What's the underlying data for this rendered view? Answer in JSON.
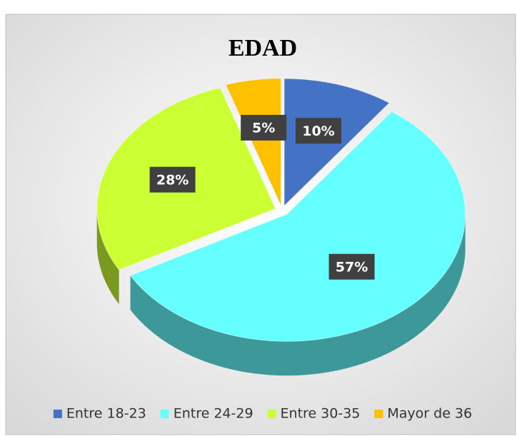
{
  "chart_data": {
    "type": "pie",
    "title": "EDAD",
    "categories": [
      "Entre 18-23",
      "Entre 24-29",
      "Entre 30-35",
      "Mayor de 36"
    ],
    "values": [
      10,
      57,
      28,
      5
    ],
    "value_labels": [
      "10%",
      "57%",
      "28%",
      "5%"
    ],
    "colors": [
      "#4472c4",
      "#66ffff",
      "#ccff33",
      "#ffc000"
    ],
    "legend": "bottom"
  }
}
